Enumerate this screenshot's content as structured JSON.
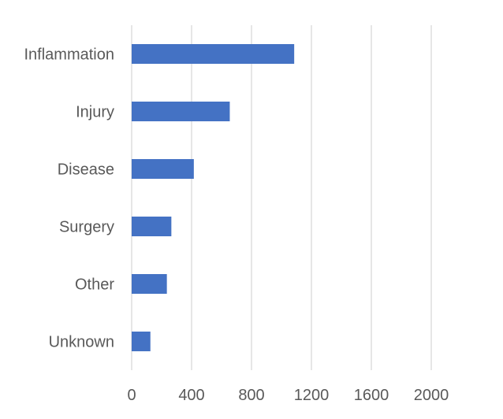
{
  "chart_data": {
    "type": "bar",
    "orientation": "horizontal",
    "categories": [
      "Inflammation",
      "Injury",
      "Disease",
      "Surgery",
      "Other",
      "Unknown"
    ],
    "values": [
      1085,
      655,
      415,
      265,
      235,
      125
    ],
    "xlim": [
      0,
      2000
    ],
    "xticks": [
      "0",
      "400",
      "800",
      "1200",
      "1600",
      "2000"
    ],
    "grid": true,
    "legend": "none",
    "title": "",
    "xlabel": "",
    "ylabel": "",
    "colors": {
      "bar": "#4472c4",
      "grid": "#d9d9d9",
      "text": "#595959"
    }
  }
}
